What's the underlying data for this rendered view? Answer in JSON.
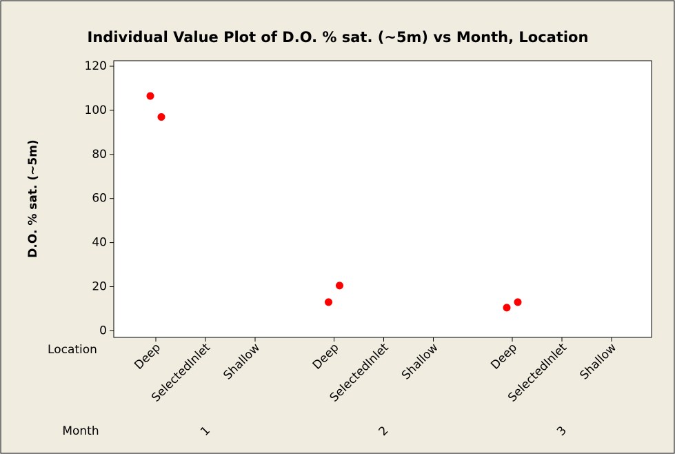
{
  "chart_data": {
    "type": "individual_value",
    "title": "Individual Value Plot of D.O. % sat. (~5m) vs Month, Location",
    "ylabel": "D.O. % sat. (~5m)",
    "inner_axis_label": "Location",
    "outer_axis_label": "Month",
    "groups": [
      "1",
      "2",
      "3"
    ],
    "categories": [
      "Deep",
      "SelectedInlet",
      "Shallow"
    ],
    "series": [
      {
        "color": "#ff0000",
        "values": [
          [
            [
              106.5,
              97
            ],
            [],
            []
          ],
          [
            [
              13,
              20.5
            ],
            [],
            []
          ],
          [
            [
              10.5,
              13
            ],
            [],
            []
          ]
        ]
      }
    ],
    "ylim": [
      -3,
      122.5
    ],
    "yticks": [
      0,
      20,
      40,
      60,
      80,
      100,
      120
    ]
  }
}
